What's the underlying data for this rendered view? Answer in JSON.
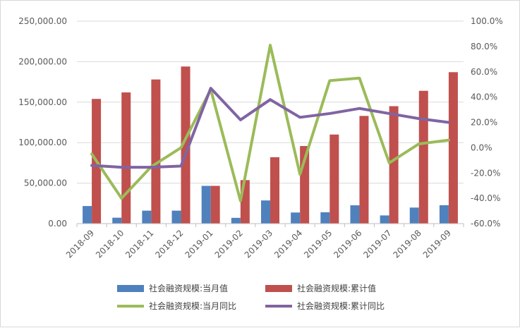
{
  "chart_data": {
    "type": "bar",
    "title": "",
    "xlabel": "",
    "ylabel": "",
    "categories": [
      "2018-09",
      "2018-10",
      "2018-11",
      "2018-12",
      "2019-01",
      "2019-02",
      "2019-03",
      "2019-04",
      "2019-05",
      "2019-06",
      "2019-07",
      "2019-08",
      "2019-09"
    ],
    "left_axis": {
      "ylim": [
        0,
        250000
      ],
      "ticks": [
        0,
        50000,
        100000,
        150000,
        200000,
        250000
      ],
      "tick_labels": [
        "0.00",
        "50,000.00",
        "100,000.00",
        "150,000.00",
        "200,000.00",
        "250,000.00"
      ]
    },
    "right_axis": {
      "ylim": [
        -0.6,
        1.0
      ],
      "ticks": [
        -0.6,
        -0.4,
        -0.2,
        0.0,
        0.2,
        0.4,
        0.6,
        0.8,
        1.0
      ],
      "tick_labels": [
        "-60.0%",
        "-40.0%",
        "-20.0%",
        "0.0%",
        "20.0%",
        "40.0%",
        "60.0%",
        "80.0%",
        "100.0%"
      ]
    },
    "series": [
      {
        "name": "社会融资规模:当月值",
        "type": "bar",
        "axis": "left",
        "color": "#4f81bd",
        "values": [
          21700,
          7300,
          16000,
          16000,
          46600,
          7100,
          28600,
          13700,
          14000,
          22600,
          10100,
          19800,
          22700
        ]
      },
      {
        "name": "社会融资规模:累计值",
        "type": "bar",
        "axis": "left",
        "color": "#c0504d",
        "values": [
          154000,
          162000,
          178000,
          194000,
          46600,
          53700,
          82000,
          95800,
          110000,
          133000,
          145000,
          164000,
          187000
        ]
      },
      {
        "name": "社会融资规模:当月同比",
        "type": "line",
        "axis": "right",
        "color": "#9bbb59",
        "values": [
          -0.05,
          -0.4,
          -0.15,
          0.0,
          0.46,
          -0.42,
          0.81,
          -0.21,
          0.53,
          0.55,
          -0.12,
          0.03,
          0.06
        ]
      },
      {
        "name": "社会融资规模:累计同比",
        "type": "line",
        "axis": "right",
        "color": "#8064a2",
        "values": [
          -0.14,
          -0.155,
          -0.155,
          -0.145,
          0.47,
          0.22,
          0.38,
          0.24,
          0.27,
          0.31,
          0.27,
          0.23,
          0.2
        ]
      }
    ],
    "grid": true,
    "legend_position": "bottom"
  }
}
